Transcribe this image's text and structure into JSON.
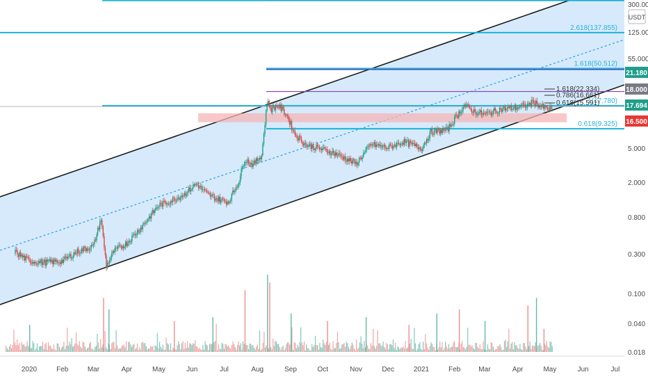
{
  "chart_data": {
    "type": "line",
    "title": "",
    "xlabel": "",
    "ylabel": "",
    "y_scale": "log",
    "ylim": [
      0.015,
      360
    ],
    "y_tick_labels": [
      "300.000",
      "125.000",
      "55.000",
      "21.180",
      "18.000",
      "17.694",
      "16.500",
      "5.000",
      "2.000",
      "0.800",
      "0.300",
      "0.100",
      "0.040",
      "0.018"
    ],
    "y_axis_unit": "USDT",
    "x_tick_labels": [
      "2020",
      "Feb",
      "Mar",
      "Apr",
      "May",
      "Jun",
      "Jul",
      "Aug",
      "Sep",
      "Oct",
      "Nov",
      "Dec",
      "2021",
      "Feb",
      "Mar",
      "Apr",
      "May",
      "Jun",
      "Jul"
    ],
    "price_tags": [
      {
        "text": "21.180",
        "value": 21.18,
        "color": "#1f9e8a"
      },
      {
        "text": "18.000",
        "value": 18.0,
        "color": "#787b86"
      },
      {
        "text": "17.694",
        "value": 17.694,
        "color": "#1f9e8a"
      },
      {
        "text": "16.500",
        "value": 16.5,
        "color": "#e53935"
      }
    ],
    "fib_levels": [
      {
        "text": "2.618(137.855)",
        "value": 137.855
      },
      {
        "text": "1.618(50.512)",
        "value": 50.512
      },
      {
        "text": "1(17.780)",
        "value": 17.78
      },
      {
        "text": "0.618(9.325)",
        "value": 9.325
      }
    ],
    "small_fib_levels": [
      {
        "text": "1.618(22.334)",
        "value": 22.334
      },
      {
        "text": "0.786(16.661)",
        "value": 16.661
      },
      {
        "text": "0.618(15.591)",
        "value": 15.591
      }
    ],
    "price_series": {
      "name": "",
      "x": [
        "2019-12-18",
        "2020-01-01",
        "2020-01-15",
        "2020-02-01",
        "2020-02-15",
        "2020-03-01",
        "2020-03-08",
        "2020-03-13",
        "2020-03-20",
        "2020-04-01",
        "2020-04-15",
        "2020-05-01",
        "2020-05-10",
        "2020-05-25",
        "2020-06-05",
        "2020-06-15",
        "2020-06-25",
        "2020-07-05",
        "2020-07-15",
        "2020-07-20",
        "2020-07-28",
        "2020-08-05",
        "2020-08-10",
        "2020-08-14",
        "2020-08-20",
        "2020-08-28",
        "2020-09-05",
        "2020-09-15",
        "2020-10-01",
        "2020-10-10",
        "2020-10-20",
        "2020-11-01",
        "2020-11-15",
        "2020-12-01",
        "2020-12-15",
        "2021-01-01",
        "2021-01-10",
        "2021-01-25",
        "2021-02-10",
        "2021-02-20",
        "2021-03-01",
        "2021-03-15",
        "2021-04-01",
        "2021-04-10",
        "2021-04-16",
        "2021-04-22",
        "2021-04-30",
        "2021-05-03"
      ],
      "y": [
        0.3,
        0.23,
        0.22,
        0.23,
        0.3,
        0.35,
        0.75,
        0.2,
        0.3,
        0.38,
        0.6,
        1.1,
        1.2,
        1.5,
        2.0,
        1.5,
        1.3,
        1.2,
        2.2,
        4.0,
        3.4,
        4.5,
        20.0,
        16.0,
        18.0,
        14.0,
        8.0,
        6.0,
        5.2,
        4.8,
        4.2,
        3.5,
        6.0,
        5.5,
        6.5,
        5.4,
        8.5,
        9.0,
        18.0,
        15.0,
        14.0,
        16.0,
        17.0,
        18.0,
        20.0,
        17.5,
        16.0,
        16.5
      ]
    },
    "volume_series": {
      "name": "",
      "note_units": "relative 0-1 of panel",
      "x": [
        "2020-01-01",
        "2020-03-10",
        "2020-03-15",
        "2020-05-15",
        "2020-06-20",
        "2020-07-20",
        "2020-08-10",
        "2020-08-12",
        "2020-09-01",
        "2020-10-05",
        "2020-11-10",
        "2020-12-20",
        "2021-01-15",
        "2021-02-05",
        "2021-03-01",
        "2021-04-10",
        "2021-04-18",
        "2021-04-25"
      ],
      "y": [
        0.35,
        0.7,
        0.55,
        0.4,
        0.45,
        0.8,
        1.0,
        0.9,
        0.5,
        0.4,
        0.45,
        0.35,
        0.5,
        0.55,
        0.4,
        0.6,
        0.7,
        0.3
      ]
    }
  }
}
